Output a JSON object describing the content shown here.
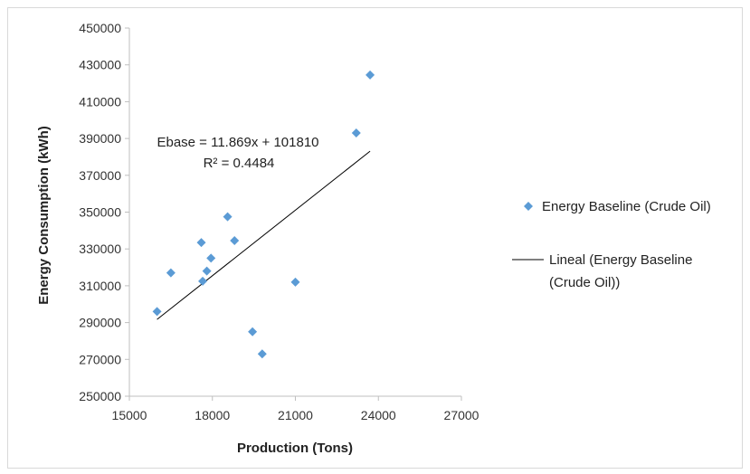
{
  "chart_data": {
    "type": "scatter",
    "xlabel": "Production (Tons)",
    "ylabel": "Energy Consumption (kWh)",
    "xlim": [
      15000,
      27000
    ],
    "ylim": [
      250000,
      450000
    ],
    "x_ticks": [
      "15000",
      "18000",
      "21000",
      "24000",
      "27000"
    ],
    "y_ticks": [
      "250000",
      "270000",
      "290000",
      "310000",
      "330000",
      "350000",
      "370000",
      "390000",
      "410000",
      "430000",
      "450000"
    ],
    "grid": false,
    "legend_position": "right",
    "series": [
      {
        "name": "Energy Baseline (Crude Oil)",
        "marker": "diamond",
        "color": "#5B9BD5",
        "points": [
          {
            "x": 16000,
            "y": 296000
          },
          {
            "x": 16500,
            "y": 317000
          },
          {
            "x": 17600,
            "y": 333500
          },
          {
            "x": 17650,
            "y": 312500
          },
          {
            "x": 17800,
            "y": 318000
          },
          {
            "x": 17950,
            "y": 325000
          },
          {
            "x": 18550,
            "y": 347500
          },
          {
            "x": 18800,
            "y": 334500
          },
          {
            "x": 19450,
            "y": 285000
          },
          {
            "x": 19800,
            "y": 273000
          },
          {
            "x": 21000,
            "y": 312000
          },
          {
            "x": 23200,
            "y": 393000
          },
          {
            "x": 23700,
            "y": 424500
          }
        ]
      },
      {
        "name": "Lineal (Energy Baseline (Crude Oil))",
        "type": "line",
        "color": "#000000",
        "slope": 11.869,
        "intercept": 101810,
        "x_range": [
          16000,
          23700
        ]
      }
    ],
    "annotations": {
      "equation": "Ebase = 11.869x + 101810",
      "r_squared": "R² = 0.4484"
    }
  },
  "legend": {
    "item1": "Energy Baseline (Crude Oil)",
    "item2_line1": "Lineal (Energy Baseline",
    "item2_line2": "(Crude Oil))"
  }
}
